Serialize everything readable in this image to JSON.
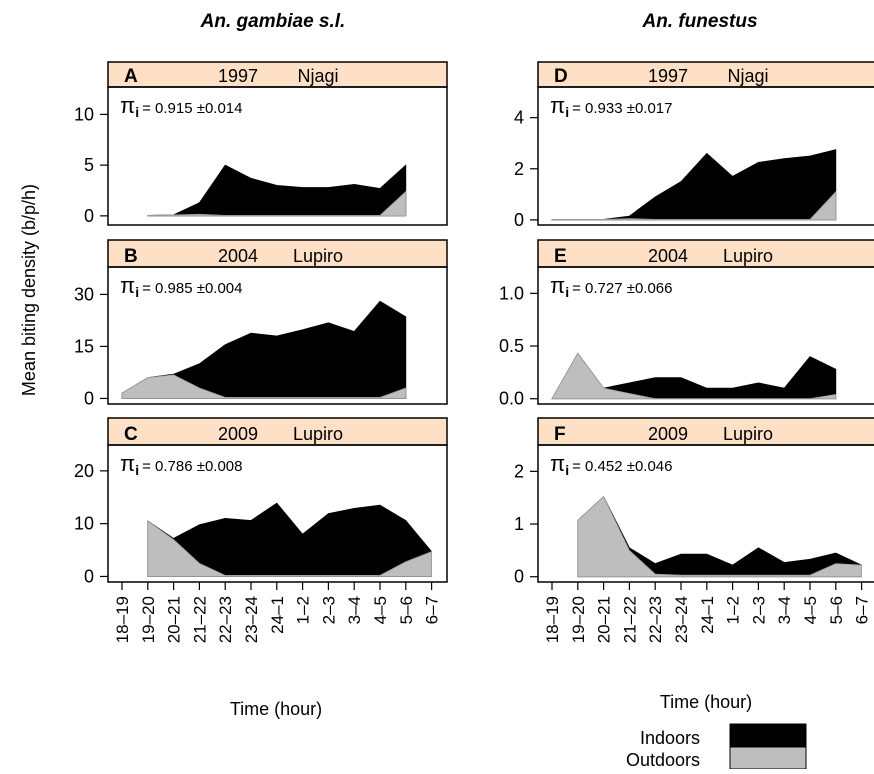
{
  "figure": {
    "column_titles": [
      "An. gambiae s.l.",
      "An. funestus"
    ],
    "ylabel": "Mean biting density (b/p/h)",
    "xlabel": "Time (hour)",
    "legend": {
      "indoors": "Indoors",
      "outdoors": "Outdoors"
    },
    "colors": {
      "indoors": "#000000",
      "outdoors": "#bebebe",
      "strip": "#fde0c5",
      "frame": "#000000"
    }
  },
  "chart_data": [
    {
      "type": "area",
      "panel": "A",
      "year": "1997",
      "site": "Njagi",
      "species": "An. gambiae s.l.",
      "pi_value": "= 0.915",
      "pi_err": "±0.014",
      "ylim": [
        -0.9,
        12.7
      ],
      "yticks": [
        "0",
        "5",
        "10"
      ],
      "ytick_values": [
        0,
        5,
        10
      ],
      "categories": [
        "18–19",
        "19–20",
        "20–21",
        "21–22",
        "22–23",
        "23–24",
        "24–1",
        "1–2",
        "2–3",
        "3–4",
        "4–5",
        "5–6",
        "6–7"
      ],
      "series": [
        {
          "name": "Indoors",
          "values": [
            null,
            0.05,
            0.1,
            1.3,
            5.0,
            3.7,
            3.0,
            2.8,
            2.8,
            3.1,
            2.7,
            5.0,
            null
          ]
        },
        {
          "name": "Outdoors",
          "values": [
            null,
            0.05,
            0.1,
            0.15,
            0.05,
            0.05,
            0.05,
            0.05,
            0.05,
            0.05,
            0.05,
            2.4,
            null
          ]
        }
      ]
    },
    {
      "type": "area",
      "panel": "B",
      "year": "2004",
      "site": "Lupiro",
      "species": "An. gambiae s.l.",
      "pi_value": "= 0.985",
      "pi_err": "±0.004",
      "ylim": [
        -1.6,
        37.9
      ],
      "yticks": [
        "0",
        "15",
        "30"
      ],
      "ytick_values": [
        0,
        15,
        30
      ],
      "categories": [
        "18–19",
        "19–20",
        "20–21",
        "21–22",
        "22–23",
        "23–24",
        "24–1",
        "1–2",
        "2–3",
        "3–4",
        "4–5",
        "5–6",
        "6–7"
      ],
      "series": [
        {
          "name": "Indoors",
          "values": [
            1.5,
            6.0,
            7.0,
            10.0,
            15.5,
            18.8,
            18.0,
            19.8,
            21.8,
            19.3,
            28.0,
            23.5,
            null
          ]
        },
        {
          "name": "Outdoors",
          "values": [
            1.5,
            6.0,
            6.8,
            3.0,
            0.3,
            0.3,
            0.3,
            0.3,
            0.3,
            0.3,
            0.3,
            3.0,
            null
          ]
        }
      ]
    },
    {
      "type": "area",
      "panel": "C",
      "year": "2009",
      "site": "Lupiro",
      "species": "An. gambiae s.l.",
      "pi_value": "= 0.786",
      "pi_err": "±0.008",
      "ylim": [
        -1.05,
        24.9
      ],
      "yticks": [
        "0",
        "10",
        "20"
      ],
      "ytick_values": [
        0,
        10,
        20
      ],
      "categories": [
        "18–19",
        "19–20",
        "20–21",
        "21–22",
        "22–23",
        "23–24",
        "24–1",
        "1–2",
        "2–3",
        "3–4",
        "4–5",
        "5–6",
        "6–7"
      ],
      "series": [
        {
          "name": "Indoors",
          "values": [
            null,
            10.5,
            7.2,
            9.8,
            11.0,
            10.6,
            13.9,
            8.0,
            11.9,
            12.9,
            13.5,
            10.6,
            4.7
          ]
        },
        {
          "name": "Outdoors",
          "values": [
            null,
            10.5,
            7.0,
            2.5,
            0.2,
            0.2,
            0.2,
            0.2,
            0.2,
            0.2,
            0.2,
            2.8,
            4.7
          ]
        }
      ]
    },
    {
      "type": "area",
      "panel": "D",
      "year": "1997",
      "site": "Njagi",
      "species": "An. funestus",
      "pi_value": "= 0.933",
      "pi_err": "±0.017",
      "ylim": [
        -0.2,
        5.2
      ],
      "yticks": [
        "0",
        "2",
        "4"
      ],
      "ytick_values": [
        0,
        2,
        4
      ],
      "categories": [
        "18–19",
        "19–20",
        "20–21",
        "21–22",
        "22–23",
        "23–24",
        "24–1",
        "1–2",
        "2–3",
        "3–4",
        "4–5",
        "5–6",
        "6–7"
      ],
      "series": [
        {
          "name": "Indoors",
          "values": [
            0.02,
            0.02,
            0.02,
            0.15,
            0.9,
            1.5,
            2.6,
            1.7,
            2.25,
            2.4,
            2.5,
            2.75,
            null
          ]
        },
        {
          "name": "Outdoors",
          "values": [
            0.02,
            0.02,
            0.02,
            0.05,
            0.02,
            0.02,
            0.02,
            0.02,
            0.02,
            0.02,
            0.02,
            1.1,
            null
          ]
        }
      ]
    },
    {
      "type": "area",
      "panel": "E",
      "year": "2004",
      "site": "Lupiro",
      "species": "An. funestus",
      "pi_value": "= 0.727",
      "pi_err": "±0.066",
      "ylim": [
        -0.05,
        1.25
      ],
      "yticks": [
        "0.0",
        "0.5",
        "1.0"
      ],
      "ytick_values": [
        0,
        0.5,
        1.0
      ],
      "categories": [
        "18–19",
        "19–20",
        "20–21",
        "21–22",
        "22–23",
        "23–24",
        "24–1",
        "1–2",
        "2–3",
        "3–4",
        "4–5",
        "5–6",
        "6–7"
      ],
      "series": [
        {
          "name": "Indoors",
          "values": [
            0.0,
            0.43,
            0.1,
            0.15,
            0.2,
            0.2,
            0.1,
            0.1,
            0.15,
            0.1,
            0.4,
            0.28,
            null
          ]
        },
        {
          "name": "Outdoors",
          "values": [
            0.0,
            0.43,
            0.1,
            0.05,
            0.0,
            0.0,
            0.0,
            0.0,
            0.0,
            0.0,
            0.0,
            0.04,
            null
          ]
        }
      ]
    },
    {
      "type": "area",
      "panel": "F",
      "year": "2009",
      "site": "Lupiro",
      "species": "An. funestus",
      "pi_value": "= 0.452",
      "pi_err": "±0.046",
      "ylim": [
        -0.1,
        2.5
      ],
      "yticks": [
        "0",
        "1",
        "2"
      ],
      "ytick_values": [
        0,
        1,
        2
      ],
      "categories": [
        "18–19",
        "19–20",
        "20–21",
        "21–22",
        "22–23",
        "23–24",
        "24–1",
        "1–2",
        "2–3",
        "3–4",
        "4–5",
        "5–6",
        "6–7"
      ],
      "series": [
        {
          "name": "Indoors",
          "values": [
            null,
            1.07,
            1.52,
            0.55,
            0.25,
            0.43,
            0.43,
            0.22,
            0.55,
            0.27,
            0.33,
            0.45,
            0.22
          ]
        },
        {
          "name": "Outdoors",
          "values": [
            null,
            1.07,
            1.52,
            0.5,
            0.05,
            0.03,
            0.03,
            0.03,
            0.03,
            0.03,
            0.03,
            0.25,
            0.22
          ]
        }
      ]
    }
  ]
}
